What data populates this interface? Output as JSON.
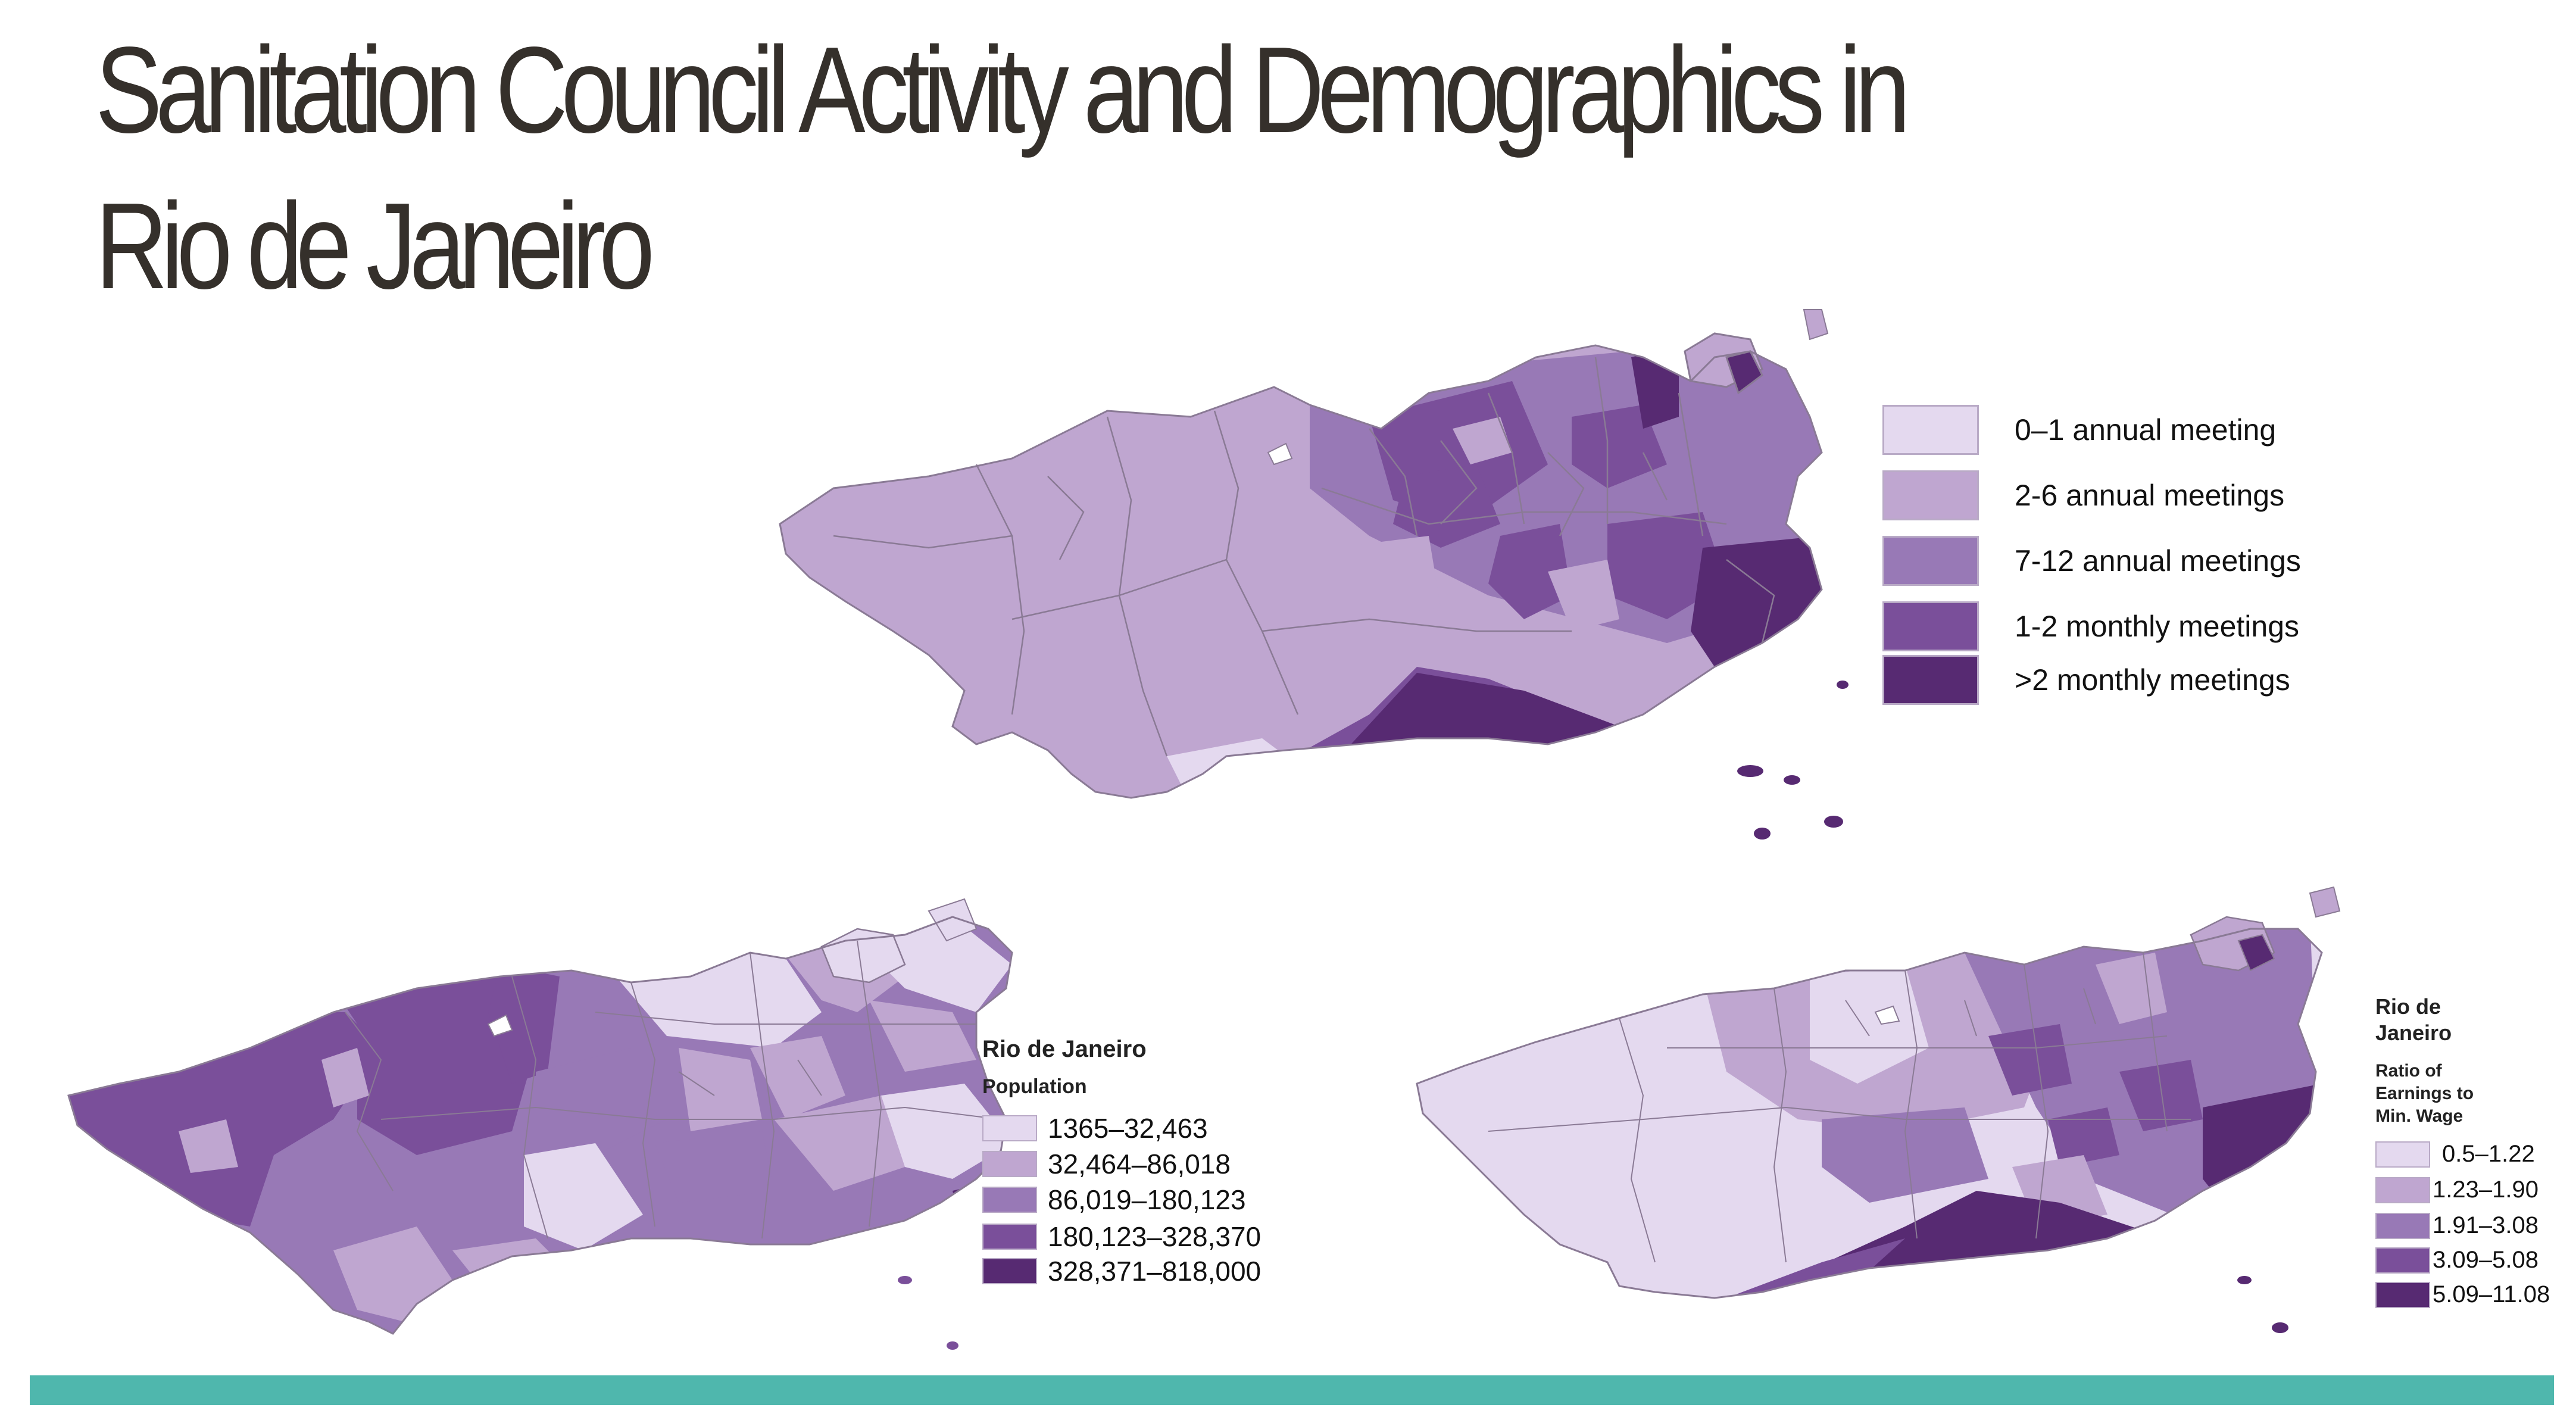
{
  "slide": {
    "title": "Sanitation Council Activity and Demographics in Rio de Janeiro"
  },
  "colors": {
    "class_1": "#e4d9ef",
    "class_2": "#bfa6d0",
    "class_3": "#9879b6",
    "class_4": "#7a4f9a",
    "class_5": "#572a72",
    "boundary": "#8a7a95",
    "accent_bar": "#4fb7ad"
  },
  "maps": {
    "meetings": {
      "legend": {
        "items": [
          {
            "label": "0–1 annual meeting",
            "color": "#e4d9ef"
          },
          {
            "label": "2-6 annual meetings",
            "color": "#bfa6d0"
          },
          {
            "label": "7-12 annual meetings",
            "color": "#9879b6"
          },
          {
            "label": "1-2 monthly meetings",
            "color": "#7a4f9a"
          },
          {
            "label": ">2 monthly meetings",
            "color": "#572a72"
          }
        ]
      }
    },
    "population": {
      "legend": {
        "place": "Rio de Janeiro",
        "variable": "Population",
        "items": [
          {
            "label": "1365–32,463",
            "color": "#e4d9ef"
          },
          {
            "label": "32,464–86,018",
            "color": "#bfa6d0"
          },
          {
            "label": "86,019–180,123",
            "color": "#9879b6"
          },
          {
            "label": "180,123–328,370",
            "color": "#7a4f9a"
          },
          {
            "label": "328,371–818,000",
            "color": "#572a72"
          }
        ]
      }
    },
    "wage": {
      "legend": {
        "place_line1": "Rio de",
        "place_line2": "Janeiro",
        "variable_line1": "Ratio of",
        "variable_line2": "Earnings to",
        "variable_line3": "Min. Wage",
        "items": [
          {
            "label": "0.5–1.22",
            "color": "#e4d9ef"
          },
          {
            "label": "1.23–1.90",
            "color": "#bfa6d0"
          },
          {
            "label": "1.91–3.08",
            "color": "#9879b6"
          },
          {
            "label": "3.09–5.08",
            "color": "#7a4f9a"
          },
          {
            "label": "5.09–11.08",
            "color": "#572a72"
          }
        ]
      }
    }
  }
}
